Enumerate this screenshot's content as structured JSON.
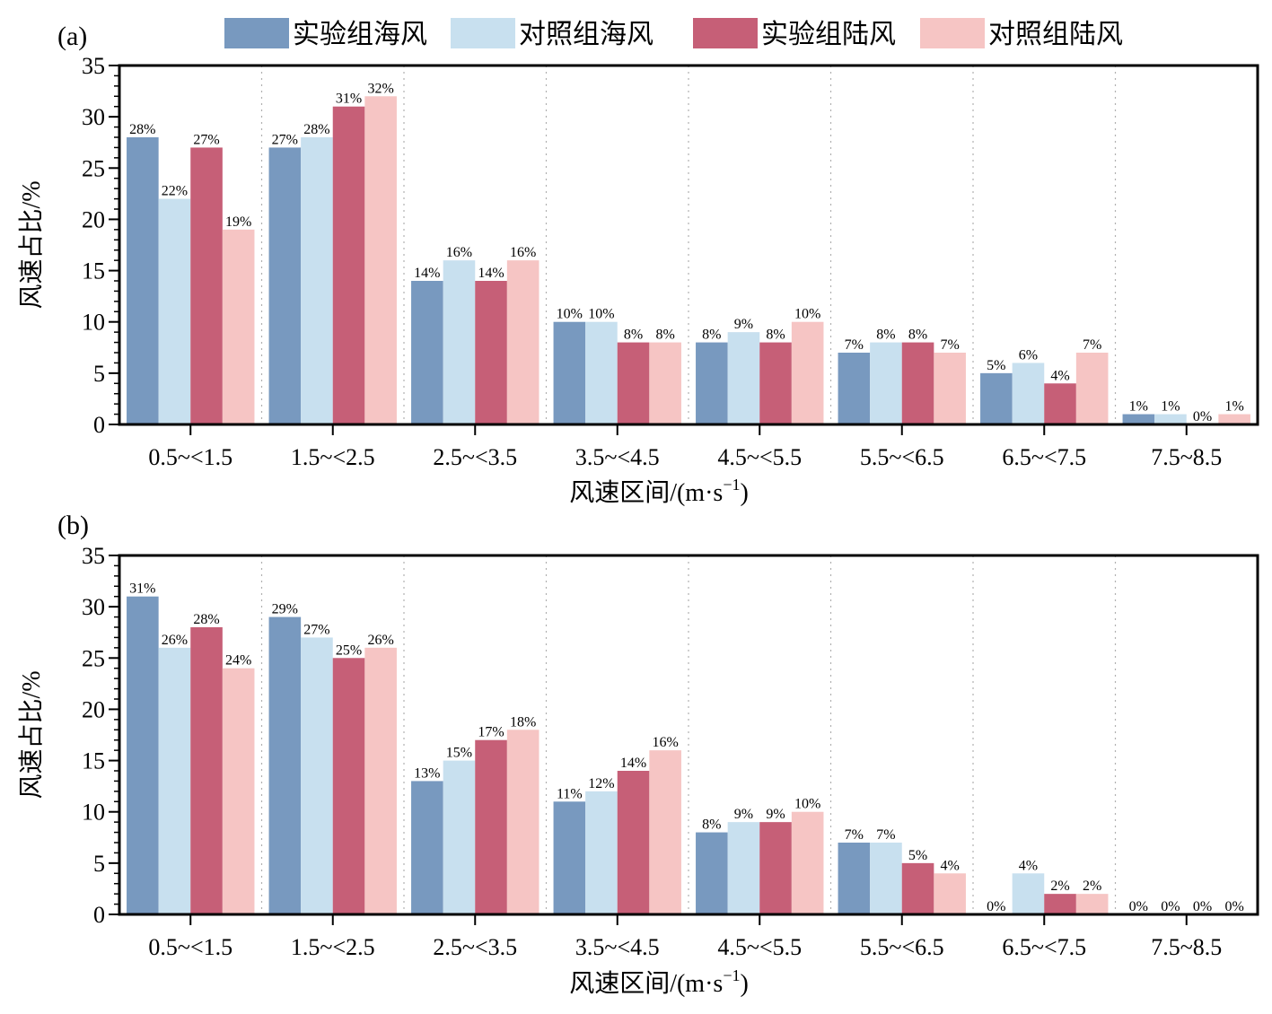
{
  "legend": [
    {
      "label": "实验组海风",
      "color": "#7899bf"
    },
    {
      "label": "对照组海风",
      "color": "#c8e0ef"
    },
    {
      "label": "实验组陆风",
      "color": "#c65f77"
    },
    {
      "label": "对照组陆风",
      "color": "#f6c5c4"
    }
  ],
  "chart_data": [
    {
      "type": "bar",
      "panel_label": "(a)",
      "categories": [
        "0.5~<1.5",
        "1.5~<2.5",
        "2.5~<3.5",
        "3.5~<4.5",
        "4.5~<5.5",
        "5.5~<6.5",
        "6.5~<7.5",
        "7.5~8.5"
      ],
      "series": [
        {
          "name": "实验组海风",
          "values": [
            28,
            27,
            14,
            10,
            8,
            7,
            5,
            1
          ]
        },
        {
          "name": "对照组海风",
          "values": [
            22,
            28,
            16,
            10,
            9,
            8,
            6,
            1
          ]
        },
        {
          "name": "实验组陆风",
          "values": [
            27,
            31,
            14,
            8,
            8,
            8,
            4,
            0
          ]
        },
        {
          "name": "对照组陆风",
          "values": [
            19,
            32,
            16,
            8,
            10,
            7,
            7,
            1
          ]
        }
      ],
      "ylabel": "风速占比/%",
      "xlabel": "风速区间/(m·s",
      "xlabel_sup": "−1",
      "xlabel_tail": ")",
      "ylim": [
        0,
        35
      ],
      "yticks": [
        0,
        5,
        10,
        15,
        20,
        25,
        30,
        35
      ],
      "value_suffix": "%",
      "grid": "vertical dotted",
      "legend_position": "top"
    },
    {
      "type": "bar",
      "panel_label": "(b)",
      "categories": [
        "0.5~<1.5",
        "1.5~<2.5",
        "2.5~<3.5",
        "3.5~<4.5",
        "4.5~<5.5",
        "5.5~<6.5",
        "6.5~<7.5",
        "7.5~8.5"
      ],
      "series": [
        {
          "name": "实验组海风",
          "values": [
            31,
            29,
            13,
            11,
            8,
            7,
            0,
            0
          ]
        },
        {
          "name": "对照组海风",
          "values": [
            26,
            27,
            15,
            12,
            9,
            7,
            4,
            0
          ]
        },
        {
          "name": "实验组陆风",
          "values": [
            28,
            25,
            17,
            14,
            9,
            5,
            2,
            0
          ]
        },
        {
          "name": "对照组陆风",
          "values": [
            24,
            26,
            18,
            16,
            10,
            4,
            2,
            0
          ]
        }
      ],
      "ylabel": "风速占比/%",
      "xlabel": "风速区间/(m·s",
      "xlabel_sup": "−1",
      "xlabel_tail": ")",
      "ylim": [
        0,
        35
      ],
      "yticks": [
        0,
        5,
        10,
        15,
        20,
        25,
        30,
        35
      ],
      "value_suffix": "%",
      "grid": "vertical dotted",
      "legend_position": "top"
    }
  ]
}
